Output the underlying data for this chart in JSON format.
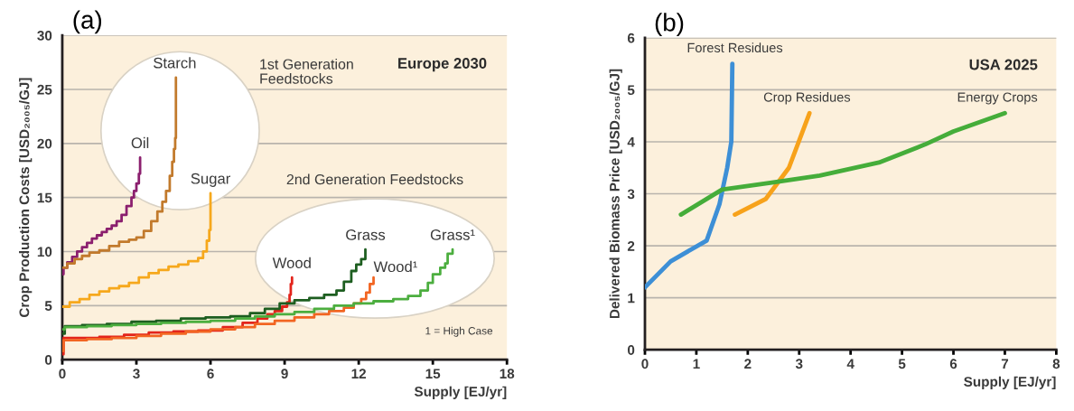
{
  "chart_data": [
    {
      "type": "step",
      "title": "(a)",
      "subtitle": "Europe 2030",
      "xlabel": "Supply [EJ/yr]",
      "ylabel": "Crop Production Costs [USD₂₀₀₅/GJ]",
      "xlim": [
        0,
        18
      ],
      "xticks": [
        0,
        3,
        6,
        9,
        12,
        15,
        18
      ],
      "ylim": [
        0,
        30
      ],
      "yticks": [
        0,
        5,
        10,
        15,
        20,
        25,
        30
      ],
      "grid": "y",
      "annotations": [
        "1st Generation\nFeedstocks",
        "2nd Generation Feedstocks",
        "1 = High Case"
      ],
      "series": [
        {
          "name": "Oil",
          "color": "#8b1f6e",
          "x": [
            0,
            0.05,
            0.2,
            0.4,
            0.6,
            0.8,
            1.0,
            1.2,
            1.4,
            1.6,
            1.8,
            2.0,
            2.2,
            2.4,
            2.6,
            2.8,
            2.9,
            3.0,
            3.1,
            3.15
          ],
          "values": [
            7.9,
            8.5,
            9.0,
            9.5,
            10.0,
            10.4,
            10.8,
            11.2,
            11.5,
            11.8,
            12.1,
            12.4,
            12.8,
            13.4,
            14.2,
            15.0,
            15.6,
            16.3,
            17.2,
            18.7
          ]
        },
        {
          "name": "Starch",
          "color": "#c27a2c",
          "x": [
            0,
            0.2,
            0.5,
            0.8,
            1.1,
            1.5,
            1.9,
            2.3,
            2.7,
            3.0,
            3.3,
            3.6,
            3.85,
            4.05,
            4.2,
            4.35,
            4.45,
            4.52,
            4.57,
            4.6
          ],
          "values": [
            8.5,
            8.9,
            9.3,
            9.6,
            9.9,
            10.1,
            10.5,
            10.9,
            11.1,
            11.3,
            11.9,
            12.8,
            13.7,
            14.6,
            15.6,
            17.0,
            18.3,
            19.5,
            20.5,
            26.1
          ]
        },
        {
          "name": "Sugar",
          "color": "#f6a81c",
          "x": [
            0,
            0.3,
            0.7,
            1.1,
            1.5,
            1.9,
            2.3,
            2.7,
            3.1,
            3.5,
            3.9,
            4.3,
            4.7,
            5.1,
            5.5,
            5.7,
            5.85,
            5.95,
            6.0
          ],
          "values": [
            4.9,
            5.3,
            5.6,
            6.0,
            6.3,
            6.6,
            6.8,
            7.1,
            7.6,
            8.0,
            8.3,
            8.6,
            8.8,
            9.1,
            9.4,
            10.0,
            11.0,
            12.0,
            15.4
          ]
        },
        {
          "name": "Wood",
          "color": "#e3241b",
          "x": [
            0,
            0.05,
            0.5,
            1.5,
            2.5,
            3.5,
            4.5,
            5.5,
            6.5,
            7.3,
            7.9,
            8.3,
            8.6,
            8.9,
            9.1,
            9.2,
            9.25,
            9.3
          ],
          "values": [
            0.5,
            2.0,
            2.0,
            2.1,
            2.3,
            2.5,
            2.6,
            2.7,
            3.0,
            3.4,
            3.8,
            4.2,
            4.5,
            4.9,
            5.3,
            6.0,
            7.0,
            7.6
          ]
        },
        {
          "name": "Grass",
          "color": "#1d5e20",
          "x": [
            0,
            0.1,
            0.8,
            1.8,
            2.8,
            3.8,
            4.8,
            5.8,
            6.8,
            7.6,
            8.2,
            8.8,
            9.4,
            10.0,
            10.6,
            11.1,
            11.4,
            11.7,
            11.9,
            12.1,
            12.27
          ],
          "values": [
            2.4,
            3.1,
            3.2,
            3.3,
            3.5,
            3.6,
            3.8,
            3.9,
            4.0,
            4.3,
            4.7,
            5.2,
            5.5,
            5.7,
            6.0,
            6.4,
            7.2,
            8.2,
            8.8,
            9.3,
            10.2
          ]
        },
        {
          "name": "Wood¹",
          "color": "#f26522",
          "x": [
            0,
            0.05,
            1,
            2,
            3,
            4,
            5,
            6,
            7,
            7.8,
            8.6,
            9.4,
            10.2,
            10.8,
            11.4,
            11.8,
            12.1,
            12.3,
            12.45,
            12.6
          ],
          "values": [
            0.8,
            1.8,
            1.9,
            2.0,
            2.2,
            2.4,
            2.6,
            2.8,
            3.0,
            3.3,
            3.6,
            3.9,
            4.2,
            4.5,
            4.8,
            5.2,
            5.6,
            6.2,
            7.0,
            7.6
          ]
        },
        {
          "name": "Grass¹",
          "color": "#4cae3f",
          "x": [
            0,
            0.1,
            1,
            2,
            3,
            4,
            5,
            6,
            7,
            7.8,
            8.6,
            9.4,
            10.2,
            11,
            11.8,
            12.6,
            13.4,
            14.0,
            14.5,
            14.8,
            15.0,
            15.3,
            15.5,
            15.6,
            15.8
          ],
          "values": [
            2.8,
            3.0,
            3.1,
            3.2,
            3.3,
            3.4,
            3.5,
            3.6,
            3.8,
            4.0,
            4.2,
            4.4,
            4.7,
            5.0,
            5.2,
            5.4,
            5.6,
            5.9,
            6.4,
            7.1,
            7.9,
            8.5,
            8.9,
            9.8,
            10.2
          ]
        }
      ]
    },
    {
      "type": "line",
      "title": "(b)",
      "subtitle": "USA 2025",
      "xlabel": "Supply [EJ/yr]",
      "ylabel": "Delivered Biomass Price [USD₂₀₀₅/GJ]",
      "xlim": [
        0,
        8
      ],
      "xticks": [
        0,
        1,
        2,
        3,
        4,
        5,
        6,
        7,
        8
      ],
      "ylim": [
        0,
        6
      ],
      "yticks": [
        0,
        1,
        2,
        3,
        4,
        5,
        6
      ],
      "grid": "y",
      "series": [
        {
          "name": "Forest Residues",
          "color": "#3d8fd6",
          "x": [
            0,
            0.5,
            1.2,
            1.45,
            1.6,
            1.68,
            1.7
          ],
          "values": [
            1.2,
            1.7,
            2.1,
            2.8,
            3.5,
            4.0,
            5.5
          ]
        },
        {
          "name": "Crop Residues",
          "color": "#f7a21b",
          "x": [
            1.75,
            2.35,
            2.8,
            3.2
          ],
          "values": [
            2.6,
            2.9,
            3.5,
            4.55
          ]
        },
        {
          "name": "Energy Crops",
          "color": "#45ad3a",
          "x": [
            0.7,
            1.5,
            2.5,
            3.4,
            4.55,
            5.45,
            6.0,
            7.0
          ],
          "values": [
            2.6,
            3.08,
            3.22,
            3.35,
            3.6,
            3.95,
            4.2,
            4.55
          ]
        }
      ]
    }
  ]
}
